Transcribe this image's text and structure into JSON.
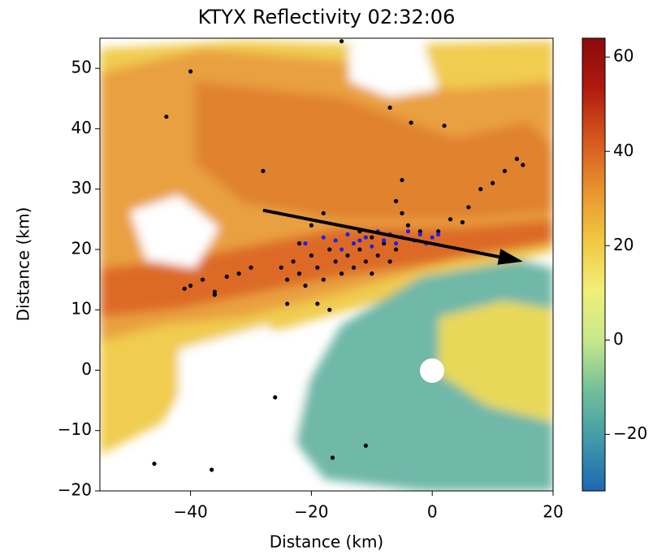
{
  "chart_data": {
    "type": "scatter",
    "title": "KTYX Reflectivity 02:32:06",
    "x_label": "Distance (km)",
    "y_label": "Distance (km)",
    "xlim": [
      -55,
      20
    ],
    "ylim": [
      -20,
      55
    ],
    "xticks": [
      {
        "value": -40,
        "label": "−40"
      },
      {
        "value": -20,
        "label": "−20"
      },
      0,
      20
    ],
    "yticks": [
      {
        "value": -20,
        "label": "−20"
      },
      {
        "value": -10,
        "label": "−10"
      },
      0,
      10,
      20,
      30,
      40,
      50
    ],
    "colorbar": {
      "lim": [
        -32,
        64
      ],
      "ticks": [
        {
          "value": -20,
          "label": "−20"
        },
        0,
        20,
        40,
        60
      ],
      "colormap": [
        "#1f66b0",
        "#3f9aa8",
        "#73bf9a",
        "#c8e88a",
        "#f2ee78",
        "#f2c640",
        "#e8922e",
        "#d4561e",
        "#b01a10",
        "#8a0a0a"
      ]
    },
    "series": [
      {
        "color": "#000000",
        "x": [
          -44,
          -40,
          -15,
          -7,
          -3.5,
          2,
          -28,
          -46,
          -36.5,
          -26,
          -11,
          -16.5,
          -40,
          -38,
          -36,
          -34,
          -32,
          -30,
          -36,
          -41,
          -25,
          -24,
          -23,
          -22,
          -21,
          -20,
          -19,
          -18,
          -17,
          -16,
          -15,
          -14,
          -13,
          -12,
          -11,
          -10,
          -9,
          -8,
          -7,
          -6,
          -24,
          -19,
          -17,
          -22,
          -20,
          -18,
          -5,
          -5,
          -6,
          -4,
          -2,
          1,
          3,
          5,
          6,
          8,
          10,
          12,
          14,
          15,
          -12,
          -10
        ],
        "y": [
          42,
          49.5,
          54.5,
          43.5,
          41,
          40.5,
          33,
          -15.5,
          -16.5,
          -4.5,
          -12.5,
          -14.5,
          14,
          15,
          13,
          15.5,
          16,
          17,
          12.5,
          13.5,
          17,
          15,
          18,
          16,
          14,
          19,
          17,
          15,
          20,
          18,
          16,
          19,
          17,
          20,
          18,
          16,
          19,
          21,
          18,
          20,
          11,
          11,
          10,
          21,
          24,
          26,
          26,
          31.5,
          28,
          24,
          23,
          23,
          25,
          24.5,
          27,
          30,
          31,
          33,
          35,
          34,
          23,
          22
        ]
      },
      {
        "color": "#2020e8",
        "x": [
          -21,
          -18,
          -16,
          -14,
          -13,
          -11,
          -10,
          -9,
          -8,
          -7,
          -6,
          -5,
          -4,
          -3,
          -2,
          -1,
          0,
          1,
          -15,
          -12
        ],
        "y": [
          21,
          22,
          21.5,
          22.5,
          21,
          22,
          20.5,
          23,
          21.5,
          22.5,
          21,
          22,
          23,
          21.5,
          22.5,
          21,
          22,
          22.5,
          20,
          21.5
        ]
      }
    ],
    "arrow": {
      "x": [
        -28,
        15
      ],
      "y": [
        26.5,
        18
      ],
      "color": "#000000"
    }
  }
}
